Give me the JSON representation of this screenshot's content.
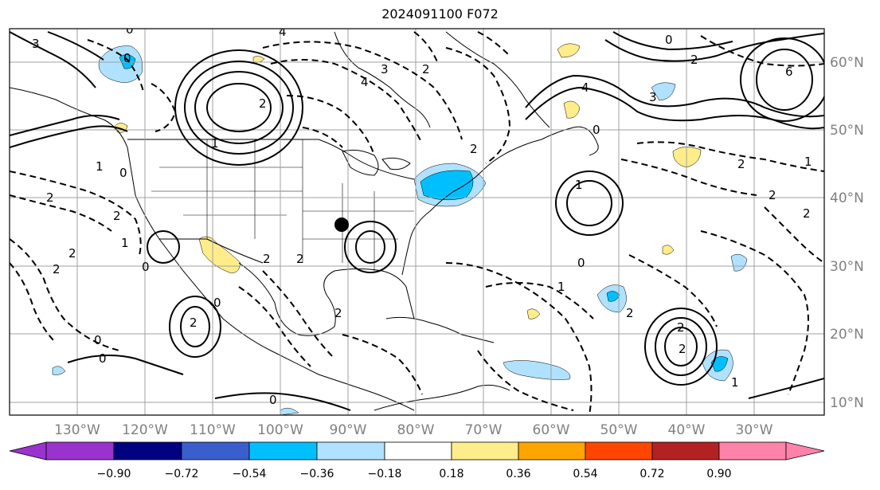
{
  "title": "2024091100 F072",
  "longitude_labels": [
    "130°W",
    "120°W",
    "110°W",
    "100°W",
    "90°W",
    "80°W",
    "70°W",
    "60°W",
    "50°W",
    "40°W",
    "30°W"
  ],
  "latitude_labels": [
    "60°N",
    "50°N",
    "40°N",
    "30°N",
    "20°N",
    "10°N"
  ],
  "colorbar": {
    "tick_labels": [
      "−0.90",
      "−0.72",
      "−0.54",
      "−0.36",
      "−0.18",
      "0.18",
      "0.36",
      "0.54",
      "0.72",
      "0.90"
    ],
    "colors": [
      "#9a32cd",
      "#000080",
      "#3a5fcd",
      "#00bfff",
      "#b0e2ff",
      "#ffffff",
      "#ffec8b",
      "#ffa500",
      "#ff4500",
      "#b22222",
      "#ff82ab"
    ]
  },
  "contour_labels": [
    "3",
    "0",
    "1",
    "2",
    "4",
    "4",
    "3",
    "2",
    "0",
    "4",
    "6",
    "3",
    "2",
    "1",
    "0",
    "2",
    "2",
    "2",
    "1",
    "1",
    "2",
    "0",
    "2",
    "0",
    "2",
    "2",
    "1",
    "0",
    "0",
    "2",
    "2",
    "2",
    "1",
    "2",
    "2",
    "1",
    "0",
    "2",
    "2",
    "0",
    "0",
    "2",
    "0"
  ],
  "marker": "black-dot"
}
